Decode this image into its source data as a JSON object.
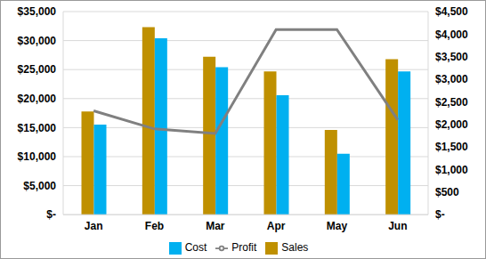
{
  "chart_data": {
    "type": "bar",
    "categories": [
      "Jan",
      "Feb",
      "Mar",
      "Apr",
      "May",
      "Jun"
    ],
    "series": [
      {
        "name": "Sales",
        "color": "#bf9000",
        "values": [
          17800,
          32300,
          27200,
          24700,
          14600,
          26800
        ]
      },
      {
        "name": "Cost",
        "color": "#00b0f0",
        "values": [
          15500,
          30400,
          25400,
          20600,
          10500,
          24700
        ]
      },
      {
        "name": "Profit",
        "color": "#808080",
        "type": "line",
        "axis": "y2",
        "values": [
          2300,
          1900,
          1800,
          4100,
          4100,
          2100
        ]
      }
    ],
    "ylim": [
      0,
      35000
    ],
    "yticks": [
      {
        "value": 0,
        "label": "$-"
      },
      {
        "value": 5000,
        "label": "$5,000"
      },
      {
        "value": 10000,
        "label": "$10,000"
      },
      {
        "value": 15000,
        "label": "$15,000"
      },
      {
        "value": 20000,
        "label": "$20,000"
      },
      {
        "value": 25000,
        "label": "$25,000"
      },
      {
        "value": 30000,
        "label": "$30,000"
      },
      {
        "value": 35000,
        "label": "$35,000"
      }
    ],
    "y2lim": [
      0,
      4500
    ],
    "y2ticks": [
      {
        "value": 0,
        "label": "$-"
      },
      {
        "value": 500,
        "label": "$500"
      },
      {
        "value": 1000,
        "label": "$1,000"
      },
      {
        "value": 1500,
        "label": "$1,500"
      },
      {
        "value": 2000,
        "label": "$2,000"
      },
      {
        "value": 2500,
        "label": "$2,500"
      },
      {
        "value": 3000,
        "label": "$3,000"
      },
      {
        "value": 3500,
        "label": "$3,500"
      },
      {
        "value": 4000,
        "label": "$4,000"
      },
      {
        "value": 4500,
        "label": "$4,500"
      }
    ],
    "grid": true,
    "legend": "bottom"
  }
}
